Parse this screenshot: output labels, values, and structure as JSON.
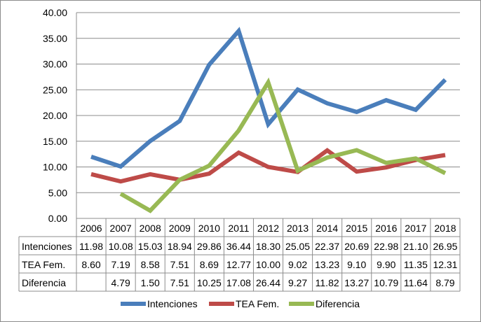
{
  "chart_data": {
    "type": "line",
    "categories": [
      "2006",
      "2007",
      "2008",
      "2009",
      "2010",
      "2011",
      "2012",
      "2013",
      "2014",
      "2015",
      "2016",
      "2017",
      "2018"
    ],
    "ylim": [
      0,
      40
    ],
    "yticks": [
      "0.00",
      "5.00",
      "10.00",
      "15.00",
      "20.00",
      "25.00",
      "30.00",
      "35.00",
      "40.00"
    ],
    "grid": true,
    "legend_position": "bottom",
    "series": [
      {
        "name": "Intenciones",
        "color": "#4a7ebb",
        "values": [
          11.98,
          10.08,
          15.03,
          18.94,
          29.86,
          36.44,
          18.3,
          25.05,
          22.37,
          20.69,
          22.98,
          21.1,
          26.95
        ],
        "labels": [
          "11.98",
          "10.08",
          "15.03",
          "18.94",
          "29.86",
          "36.44",
          "18.30",
          "25.05",
          "22.37",
          "20.69",
          "22.98",
          "21.10",
          "26.95"
        ]
      },
      {
        "name": "TEA Fem.",
        "color": "#be4b48",
        "values": [
          8.6,
          7.19,
          8.58,
          7.51,
          8.69,
          12.77,
          10.0,
          9.02,
          13.23,
          9.1,
          9.9,
          11.35,
          12.31
        ],
        "labels": [
          "8.60",
          "7.19",
          "8.58",
          "7.51",
          "8.69",
          "12.77",
          "10.00",
          "9.02",
          "13.23",
          "9.10",
          "9.90",
          "11.35",
          "12.31"
        ]
      },
      {
        "name": "Diferencia",
        "color": "#98b954",
        "values": [
          null,
          4.79,
          1.5,
          7.51,
          10.25,
          17.08,
          26.44,
          9.27,
          11.82,
          13.27,
          10.79,
          11.64,
          8.79
        ],
        "labels": [
          "",
          "4.79",
          "1.50",
          "7.51",
          "10.25",
          "17.08",
          "26.44",
          "9.27",
          "11.82",
          "13.27",
          "10.79",
          "11.64",
          "8.79"
        ]
      }
    ]
  }
}
